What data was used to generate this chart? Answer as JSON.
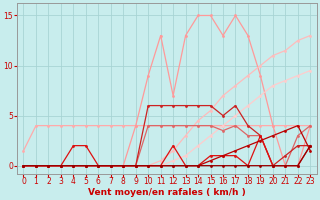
{
  "bg_color": "#c8eded",
  "grid_color": "#a8d4d4",
  "xlim": [
    -0.5,
    23.5
  ],
  "ylim": [
    -0.8,
    16.2
  ],
  "x_ticks": [
    0,
    1,
    2,
    3,
    4,
    5,
    6,
    7,
    8,
    9,
    10,
    11,
    12,
    13,
    14,
    15,
    16,
    17,
    18,
    19,
    20,
    21,
    22,
    23
  ],
  "y_ticks": [
    0,
    5,
    10,
    15
  ],
  "xlabel": "Vent moyen/en rafales ( km/h )",
  "xlabel_color": "#cc0000",
  "tick_color": "#cc0000",
  "tick_fontsize": 5.5,
  "xlabel_fontsize": 6.5,
  "lines": [
    {
      "x": [
        0,
        1,
        2,
        3,
        4,
        5,
        6,
        7,
        8,
        9,
        10,
        11,
        12,
        13,
        14,
        15,
        16,
        17,
        18,
        19,
        20,
        21,
        22,
        23
      ],
      "y": [
        1.5,
        4,
        4,
        4,
        4,
        4,
        4,
        4,
        4,
        4,
        4,
        4,
        4,
        4,
        4,
        4,
        4,
        4,
        4,
        4,
        4,
        4,
        4,
        4
      ],
      "color": "#ffaaaa",
      "lw": 0.9,
      "marker": "o",
      "ms": 2.0
    },
    {
      "x": [
        0,
        1,
        2,
        3,
        4,
        5,
        6,
        7,
        8,
        9,
        10,
        11,
        12,
        13,
        14,
        15,
        16,
        17,
        18,
        19,
        20,
        21,
        22,
        23
      ],
      "y": [
        0,
        0,
        0,
        0,
        0,
        0,
        0,
        0,
        0,
        4,
        9,
        13,
        7,
        13,
        15,
        15,
        13,
        15,
        13,
        9,
        4,
        0,
        0,
        4
      ],
      "color": "#ff9999",
      "lw": 0.9,
      "marker": "o",
      "ms": 2.0
    },
    {
      "x": [
        0,
        1,
        2,
        3,
        4,
        5,
        6,
        7,
        8,
        9,
        10,
        11,
        12,
        13,
        14,
        15,
        16,
        17,
        18,
        19,
        20,
        21,
        22,
        23
      ],
      "y": [
        0,
        0,
        0,
        0,
        0,
        0,
        0,
        0,
        0,
        0,
        0,
        0.5,
        1.5,
        3,
        4.5,
        5.5,
        7,
        8,
        9,
        10,
        11,
        11.5,
        12.5,
        13
      ],
      "color": "#ffbbbb",
      "lw": 0.9,
      "marker": "o",
      "ms": 2.0
    },
    {
      "x": [
        0,
        1,
        2,
        3,
        4,
        5,
        6,
        7,
        8,
        9,
        10,
        11,
        12,
        13,
        14,
        15,
        16,
        17,
        18,
        19,
        20,
        21,
        22,
        23
      ],
      "y": [
        0,
        0,
        0,
        0,
        0,
        0,
        0,
        0,
        0,
        0,
        0,
        0,
        0.5,
        1,
        2,
        3,
        4,
        5,
        6,
        7,
        8,
        8.5,
        9,
        9.5
      ],
      "color": "#ffcccc",
      "lw": 0.9,
      "marker": "o",
      "ms": 2.0
    },
    {
      "x": [
        0,
        1,
        2,
        3,
        4,
        5,
        6,
        7,
        8,
        9,
        10,
        11,
        12,
        13,
        14,
        15,
        16,
        17,
        18,
        19,
        20,
        21,
        22,
        23
      ],
      "y": [
        0,
        0,
        0,
        0,
        0,
        0,
        0,
        0,
        0,
        0,
        4,
        4,
        4,
        4,
        4,
        4,
        3.5,
        4,
        3,
        3,
        0,
        0,
        3,
        4
      ],
      "color": "#dd6666",
      "lw": 0.9,
      "marker": "o",
      "ms": 2.0
    },
    {
      "x": [
        0,
        1,
        2,
        3,
        4,
        5,
        6,
        7,
        8,
        9,
        10,
        11,
        12,
        13,
        14,
        15,
        16,
        17,
        18,
        19,
        20,
        21,
        22,
        23
      ],
      "y": [
        0,
        0,
        0,
        0,
        0,
        0,
        0,
        0,
        0,
        0,
        6,
        6,
        6,
        6,
        6,
        6,
        5,
        6,
        4,
        3,
        0,
        1,
        2,
        2
      ],
      "color": "#cc2222",
      "lw": 0.9,
      "marker": "o",
      "ms": 2.0
    },
    {
      "x": [
        0,
        1,
        2,
        3,
        4,
        5,
        6,
        7,
        8,
        9,
        10,
        11,
        12,
        13,
        14,
        15,
        16,
        17,
        18,
        19,
        20,
        21,
        22,
        23
      ],
      "y": [
        0,
        0,
        0,
        0,
        2,
        2,
        0,
        0,
        0,
        0,
        0,
        0,
        2,
        0,
        0,
        1,
        1,
        1,
        0,
        3,
        0,
        0,
        0,
        2
      ],
      "color": "#dd1111",
      "lw": 0.9,
      "marker": "o",
      "ms": 2.0
    },
    {
      "x": [
        0,
        1,
        2,
        3,
        4,
        5,
        6,
        7,
        8,
        9,
        10,
        11,
        12,
        13,
        14,
        15,
        16,
        17,
        18,
        19,
        20,
        21,
        22,
        23
      ],
      "y": [
        0,
        0,
        0,
        0,
        0,
        0,
        0,
        0,
        0,
        0,
        0,
        0,
        0,
        0,
        0,
        0.5,
        1,
        1.5,
        2,
        2.5,
        3,
        3.5,
        4,
        1.5
      ],
      "color": "#bb0000",
      "lw": 0.9,
      "marker": "o",
      "ms": 2.0
    },
    {
      "x": [
        0,
        1,
        2,
        3,
        4,
        5,
        6,
        7,
        8,
        9,
        10,
        11,
        12,
        13,
        14,
        15,
        16,
        17,
        18,
        19,
        20,
        21,
        22,
        23
      ],
      "y": [
        0,
        0,
        0,
        0,
        0,
        0,
        0,
        0,
        0,
        0,
        0,
        0,
        0,
        0,
        0,
        0,
        0,
        0,
        0,
        0,
        0,
        0,
        0,
        2
      ],
      "color": "#990000",
      "lw": 0.9,
      "marker": "o",
      "ms": 2.0
    }
  ]
}
